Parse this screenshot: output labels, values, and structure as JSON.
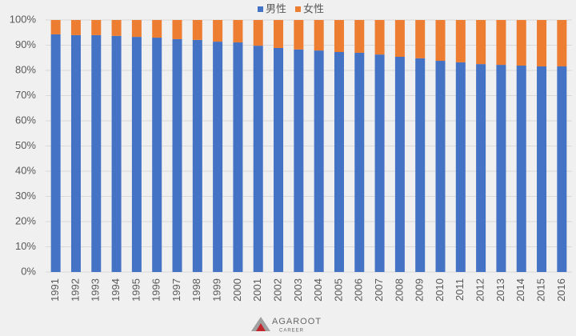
{
  "chart_data": {
    "type": "stacked-bar",
    "categories": [
      "1991",
      "1992",
      "1993",
      "1994",
      "1995",
      "1996",
      "1997",
      "1998",
      "1999",
      "2000",
      "2001",
      "2002",
      "2003",
      "2004",
      "2005",
      "2006",
      "2007",
      "2008",
      "2009",
      "2010",
      "2011",
      "2012",
      "2013",
      "2014",
      "2015",
      "2016"
    ],
    "series": [
      {
        "name": "男性",
        "color": "#4472c4",
        "values": [
          94.3,
          94.0,
          94.0,
          93.7,
          93.3,
          93.0,
          92.4,
          92.1,
          91.4,
          91.1,
          89.8,
          88.9,
          88.3,
          87.9,
          87.3,
          87.0,
          86.3,
          85.4,
          84.8,
          83.8,
          83.2,
          82.5,
          82.2,
          81.9,
          81.6,
          81.6
        ]
      },
      {
        "name": "女性",
        "color": "#ed7d31",
        "values": [
          5.7,
          6.0,
          6.0,
          6.3,
          6.7,
          7.0,
          7.6,
          7.9,
          8.6,
          8.9,
          10.2,
          11.1,
          11.7,
          12.1,
          12.7,
          13.0,
          13.7,
          14.6,
          15.2,
          16.2,
          16.8,
          17.5,
          17.8,
          18.1,
          18.4,
          18.4
        ]
      }
    ],
    "ylim": [
      0,
      100
    ],
    "yticks": [
      {
        "value": 0,
        "label": "0%"
      },
      {
        "value": 10,
        "label": "10%"
      },
      {
        "value": 20,
        "label": "20%"
      },
      {
        "value": 30,
        "label": "30%"
      },
      {
        "value": 40,
        "label": "40%"
      },
      {
        "value": 50,
        "label": "50%"
      },
      {
        "value": 60,
        "label": "60%"
      },
      {
        "value": 70,
        "label": "70%"
      },
      {
        "value": 80,
        "label": "80%"
      },
      {
        "value": 90,
        "label": "90%"
      },
      {
        "value": 100,
        "label": "100%"
      }
    ],
    "grid": true,
    "legend": "top"
  },
  "footer": {
    "logo": "AGAROOT",
    "sub": "CAREER"
  }
}
